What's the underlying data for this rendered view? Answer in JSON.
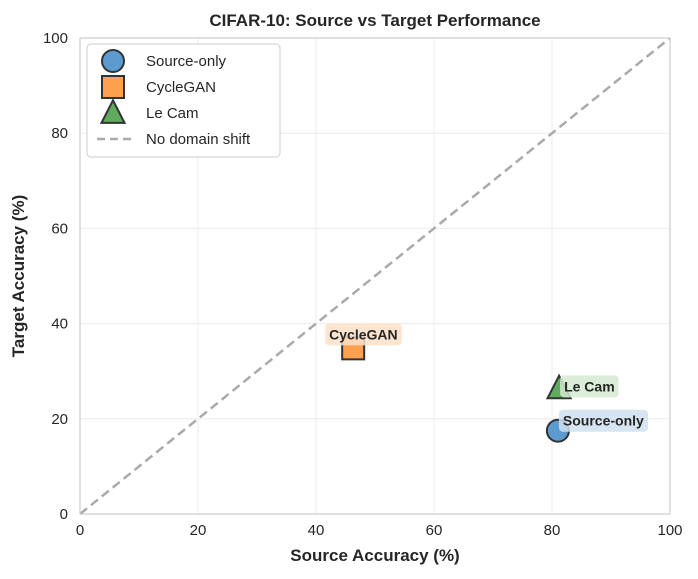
{
  "chart_data": {
    "type": "scatter",
    "title": "CIFAR-10: Source vs Target Performance",
    "xlabel": "Source Accuracy (%)",
    "ylabel": "Target Accuracy (%)",
    "xlim": [
      0,
      100
    ],
    "ylim": [
      0,
      100
    ],
    "xticks": [
      0,
      20,
      40,
      60,
      80,
      100
    ],
    "yticks": [
      0,
      20,
      40,
      60,
      80,
      100
    ],
    "grid": true,
    "legend_position": "top-left",
    "series": [
      {
        "name": "Source-only",
        "marker": "circle",
        "color": "#5b9bd0",
        "label_bg": "#cfe1ef",
        "x": 81.0,
        "y": 17.5,
        "annotation": "Source-only"
      },
      {
        "name": "CycleGAN",
        "marker": "square",
        "color": "#ffa04f",
        "label_bg": "#fde0c8",
        "x": 46.3,
        "y": 34.8,
        "annotation": "CycleGAN"
      },
      {
        "name": "Le Cam",
        "marker": "triangle",
        "color": "#5faa5f",
        "label_bg": "#d2ead0",
        "x": 81.2,
        "y": 26.4,
        "annotation": "Le Cam"
      }
    ],
    "reference_line": {
      "name": "No domain shift",
      "style": "dashed",
      "color": "#aaaaaa",
      "from": [
        0,
        0
      ],
      "to": [
        100,
        100
      ]
    }
  }
}
